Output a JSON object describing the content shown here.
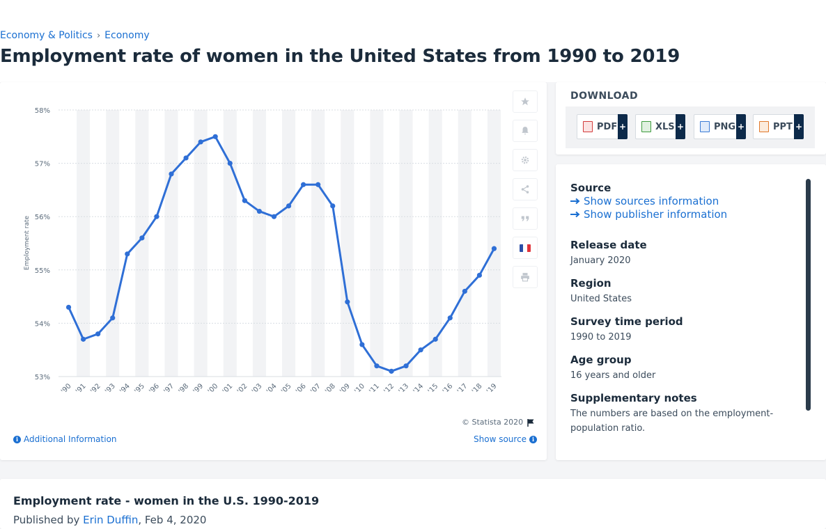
{
  "breadcrumb": {
    "item1": "Economy & Politics",
    "separator": "›",
    "item2": "Economy"
  },
  "page_title": "Employment rate of women in the United States from 1990 to 2019",
  "chart_footer": {
    "copyright": "© Statista 2020",
    "additional_info": "Additional Information",
    "show_source": "Show source"
  },
  "download": {
    "title": "DOWNLOAD",
    "buttons": [
      {
        "label": "PDF",
        "icon": "pdf-file-icon",
        "color": "#d23b3b"
      },
      {
        "label": "XLS",
        "icon": "xls-file-icon",
        "color": "#3d9a3d"
      },
      {
        "label": "PNG",
        "icon": "png-file-icon",
        "color": "#3a7bd5"
      },
      {
        "label": "PPT",
        "icon": "ppt-file-icon",
        "color": "#e0782a"
      }
    ],
    "plus": "+"
  },
  "tools": [
    "star-icon",
    "bell-icon",
    "gear-icon",
    "share-icon",
    "quote-icon",
    "french-flag-icon",
    "print-icon"
  ],
  "meta": {
    "source_label": "Source",
    "show_sources": "Show sources information",
    "show_publisher": "Show publisher information",
    "release_label": "Release date",
    "release_value": "January 2020",
    "region_label": "Region",
    "region_value": "United States",
    "survey_label": "Survey time period",
    "survey_value": "1990 to 2019",
    "age_label": "Age group",
    "age_value": "16 years and older",
    "notes_label": "Supplementary notes",
    "notes_value": "The numbers are based on the employment-population ratio."
  },
  "bottom": {
    "title": "Employment rate - women in the U.S. 1990-2019",
    "published_prefix": "Published by",
    "author": "Erin Duffin",
    "date": ", Feb 4, 2020"
  },
  "colors": {
    "line": "#2f6fd6",
    "link": "#1a6fd1",
    "dark": "#0d2a4a"
  },
  "chart_data": {
    "type": "line",
    "title": "",
    "ylabel": "Employment rate",
    "xlabel": "",
    "ylim": [
      53,
      58
    ],
    "yticks": [
      "53%",
      "54%",
      "55%",
      "56%",
      "57%",
      "58%"
    ],
    "categories": [
      "'90",
      "'91",
      "'92",
      "'93",
      "'94",
      "'95",
      "'96",
      "'97",
      "'98",
      "'99",
      "'00",
      "'01",
      "'02",
      "'03",
      "'04",
      "'05",
      "'06",
      "'07",
      "'08",
      "'09",
      "'10",
      "'11",
      "'12",
      "'13",
      "'14",
      "'15",
      "'16",
      "'17",
      "'18",
      "'19"
    ],
    "series": [
      {
        "values": [
          54.3,
          53.7,
          53.8,
          54.1,
          55.3,
          55.6,
          56.0,
          56.8,
          57.1,
          57.4,
          57.5,
          57.0,
          56.3,
          56.1,
          56.0,
          56.2,
          56.6,
          56.6,
          56.2,
          54.4,
          53.6,
          53.2,
          53.1,
          53.2,
          53.5,
          53.7,
          54.1,
          54.6,
          54.9,
          55.4
        ]
      }
    ],
    "grid": true,
    "legend": "none"
  }
}
